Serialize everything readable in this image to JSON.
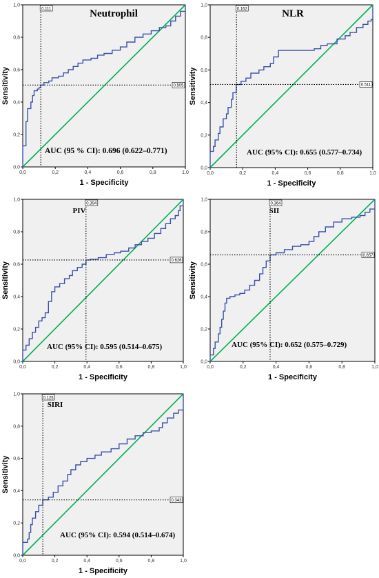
{
  "chart_data": [
    {
      "type": "line",
      "title": "Neutrophil",
      "xlabel": "1 - Specificity",
      "ylabel": "Sensitivity",
      "xlim": [
        0,
        1
      ],
      "ylim": [
        0,
        1
      ],
      "ticks": [
        "0,0",
        "0,2",
        "0,4",
        "0,6",
        "0,8",
        "1,0"
      ],
      "auc_text": "AUC (95 % CI): 0.696 (0.622–0.771)",
      "cutoff_x": 0.111,
      "cutoff_y": 0.505,
      "cutoff_x_label": "0.111",
      "cutoff_y_label": "0.505",
      "roc_color": "#3a4fa8",
      "ref_color": "#00b050",
      "roc": [
        [
          0,
          0
        ],
        [
          0,
          0.13
        ],
        [
          0.02,
          0.16
        ],
        [
          0.02,
          0.28
        ],
        [
          0.03,
          0.36
        ],
        [
          0.05,
          0.37
        ],
        [
          0.05,
          0.4
        ],
        [
          0.06,
          0.44
        ],
        [
          0.07,
          0.47
        ],
        [
          0.09,
          0.48
        ],
        [
          0.1,
          0.49
        ],
        [
          0.11,
          0.505
        ],
        [
          0.13,
          0.52
        ],
        [
          0.16,
          0.53
        ],
        [
          0.18,
          0.55
        ],
        [
          0.22,
          0.56
        ],
        [
          0.25,
          0.58
        ],
        [
          0.28,
          0.6
        ],
        [
          0.31,
          0.62
        ],
        [
          0.34,
          0.64
        ],
        [
          0.37,
          0.66
        ],
        [
          0.42,
          0.67
        ],
        [
          0.46,
          0.69
        ],
        [
          0.5,
          0.7
        ],
        [
          0.55,
          0.72
        ],
        [
          0.6,
          0.74
        ],
        [
          0.64,
          0.77
        ],
        [
          0.69,
          0.8
        ],
        [
          0.74,
          0.82
        ],
        [
          0.79,
          0.84
        ],
        [
          0.84,
          0.86
        ],
        [
          0.88,
          0.87
        ],
        [
          0.91,
          0.9
        ],
        [
          0.94,
          0.93
        ],
        [
          0.97,
          0.96
        ],
        [
          1,
          0.97
        ],
        [
          1,
          1
        ]
      ]
    },
    {
      "type": "line",
      "title": "NLR",
      "xlabel": "1 - Specificity",
      "ylabel": "Sensitivity",
      "xlim": [
        0,
        1
      ],
      "ylim": [
        0,
        1
      ],
      "ticks": [
        "0,0",
        "0,2",
        "0,4",
        "0,6",
        "0,8",
        "1,0"
      ],
      "auc_text": "AUC (95% CI): 0.655 (0.577–0.734)",
      "cutoff_x": 0.162,
      "cutoff_y": 0.511,
      "cutoff_x_label": "0.162",
      "cutoff_y_label": "0.511",
      "roc_color": "#3a4fa8",
      "ref_color": "#00b050",
      "roc": [
        [
          0,
          0
        ],
        [
          0,
          0.1
        ],
        [
          0.02,
          0.13
        ],
        [
          0.03,
          0.17
        ],
        [
          0.05,
          0.21
        ],
        [
          0.06,
          0.25
        ],
        [
          0.08,
          0.3
        ],
        [
          0.1,
          0.33
        ],
        [
          0.11,
          0.37
        ],
        [
          0.13,
          0.42
        ],
        [
          0.14,
          0.46
        ],
        [
          0.16,
          0.51
        ],
        [
          0.19,
          0.53
        ],
        [
          0.22,
          0.55
        ],
        [
          0.25,
          0.58
        ],
        [
          0.3,
          0.6
        ],
        [
          0.33,
          0.62
        ],
        [
          0.37,
          0.64
        ],
        [
          0.39,
          0.68
        ],
        [
          0.42,
          0.72
        ],
        [
          0.5,
          0.72
        ],
        [
          0.58,
          0.72
        ],
        [
          0.64,
          0.73
        ],
        [
          0.68,
          0.75
        ],
        [
          0.72,
          0.76
        ],
        [
          0.78,
          0.79
        ],
        [
          0.83,
          0.81
        ],
        [
          0.86,
          0.83
        ],
        [
          0.9,
          0.86
        ],
        [
          0.94,
          0.88
        ],
        [
          0.97,
          0.9
        ],
        [
          0.99,
          0.91
        ],
        [
          1,
          1
        ]
      ]
    },
    {
      "type": "line",
      "title": "PIV",
      "xlabel": "1 - Specificity",
      "ylabel": "Sensitivity",
      "xlim": [
        0,
        1
      ],
      "ylim": [
        0,
        1
      ],
      "ticks": [
        "0,0",
        "0,2",
        "0,4",
        "0,6",
        "0,8",
        "1,0"
      ],
      "auc_text": "AUC (95% CI): 0.595 (0.514–0.675)",
      "cutoff_x": 0.394,
      "cutoff_y": 0.626,
      "cutoff_x_label": "0.394",
      "cutoff_y_label": "0.626",
      "roc_color": "#3a4fa8",
      "ref_color": "#00b050",
      "roc": [
        [
          0,
          0
        ],
        [
          0,
          0.07
        ],
        [
          0.02,
          0.1
        ],
        [
          0.04,
          0.14
        ],
        [
          0.06,
          0.18
        ],
        [
          0.08,
          0.21
        ],
        [
          0.1,
          0.25
        ],
        [
          0.12,
          0.27
        ],
        [
          0.14,
          0.3
        ],
        [
          0.16,
          0.37
        ],
        [
          0.18,
          0.43
        ],
        [
          0.2,
          0.46
        ],
        [
          0.23,
          0.48
        ],
        [
          0.26,
          0.51
        ],
        [
          0.29,
          0.53
        ],
        [
          0.31,
          0.56
        ],
        [
          0.34,
          0.58
        ],
        [
          0.37,
          0.6
        ],
        [
          0.394,
          0.626
        ],
        [
          0.42,
          0.63
        ],
        [
          0.47,
          0.64
        ],
        [
          0.52,
          0.66
        ],
        [
          0.57,
          0.67
        ],
        [
          0.61,
          0.68
        ],
        [
          0.66,
          0.7
        ],
        [
          0.7,
          0.72
        ],
        [
          0.74,
          0.74
        ],
        [
          0.78,
          0.76
        ],
        [
          0.82,
          0.79
        ],
        [
          0.86,
          0.82
        ],
        [
          0.89,
          0.85
        ],
        [
          0.92,
          0.88
        ],
        [
          0.95,
          0.9
        ],
        [
          0.97,
          0.93
        ],
        [
          0.98,
          0.96
        ],
        [
          1,
          1
        ]
      ]
    },
    {
      "type": "line",
      "title": "SII",
      "xlabel": "1 - Specificity",
      "ylabel": "Sensitivity",
      "xlim": [
        0,
        1
      ],
      "ylim": [
        0,
        1
      ],
      "ticks": [
        "0,0",
        "0,2",
        "0,4",
        "0,6",
        "0,8",
        "1,0"
      ],
      "auc_text": "AUC (95% CI): 0.652 (0.575–0.729)",
      "cutoff_x": 0.364,
      "cutoff_y": 0.657,
      "cutoff_x_label": "0.364",
      "cutoff_y_label": "0.657",
      "roc_color": "#3a4fa8",
      "ref_color": "#00b050",
      "roc": [
        [
          0,
          0
        ],
        [
          0,
          0.04
        ],
        [
          0.02,
          0.08
        ],
        [
          0.03,
          0.12
        ],
        [
          0.05,
          0.17
        ],
        [
          0.06,
          0.21
        ],
        [
          0.07,
          0.26
        ],
        [
          0.08,
          0.31
        ],
        [
          0.09,
          0.36
        ],
        [
          0.1,
          0.39
        ],
        [
          0.12,
          0.4
        ],
        [
          0.15,
          0.41
        ],
        [
          0.18,
          0.42
        ],
        [
          0.21,
          0.44
        ],
        [
          0.24,
          0.47
        ],
        [
          0.27,
          0.5
        ],
        [
          0.3,
          0.54
        ],
        [
          0.32,
          0.58
        ],
        [
          0.34,
          0.62
        ],
        [
          0.364,
          0.657
        ],
        [
          0.4,
          0.67
        ],
        [
          0.45,
          0.69
        ],
        [
          0.5,
          0.71
        ],
        [
          0.55,
          0.72
        ],
        [
          0.6,
          0.74
        ],
        [
          0.63,
          0.77
        ],
        [
          0.66,
          0.8
        ],
        [
          0.7,
          0.83
        ],
        [
          0.75,
          0.86
        ],
        [
          0.8,
          0.88
        ],
        [
          0.86,
          0.89
        ],
        [
          0.91,
          0.9
        ],
        [
          0.94,
          0.92
        ],
        [
          0.97,
          0.94
        ],
        [
          1,
          0.97
        ],
        [
          1,
          1
        ]
      ]
    },
    {
      "type": "line",
      "title": "SIRI",
      "xlabel": "1 - Specificity",
      "ylabel": "Sensitivity",
      "xlim": [
        0,
        1
      ],
      "ylim": [
        0,
        1
      ],
      "ticks": [
        "0,0",
        "0,2",
        "0,4",
        "0,6",
        "0,8",
        "1,0"
      ],
      "auc_text": "AUC (95% CI): 0.594 (0.514–0.674)",
      "cutoff_x": 0.125,
      "cutoff_y": 0.343,
      "cutoff_x_label": "0.125",
      "cutoff_y_label": "0.343",
      "roc_color": "#3a4fa8",
      "ref_color": "#00b050",
      "roc": [
        [
          0,
          0
        ],
        [
          0,
          0.08
        ],
        [
          0.03,
          0.1
        ],
        [
          0.04,
          0.14
        ],
        [
          0.05,
          0.19
        ],
        [
          0.06,
          0.23
        ],
        [
          0.08,
          0.27
        ],
        [
          0.1,
          0.31
        ],
        [
          0.125,
          0.343
        ],
        [
          0.16,
          0.36
        ],
        [
          0.19,
          0.39
        ],
        [
          0.22,
          0.43
        ],
        [
          0.25,
          0.46
        ],
        [
          0.28,
          0.5
        ],
        [
          0.3,
          0.53
        ],
        [
          0.33,
          0.56
        ],
        [
          0.36,
          0.58
        ],
        [
          0.4,
          0.6
        ],
        [
          0.45,
          0.62
        ],
        [
          0.49,
          0.64
        ],
        [
          0.55,
          0.66
        ],
        [
          0.6,
          0.69
        ],
        [
          0.65,
          0.72
        ],
        [
          0.7,
          0.74
        ],
        [
          0.75,
          0.76
        ],
        [
          0.8,
          0.77
        ],
        [
          0.85,
          0.79
        ],
        [
          0.87,
          0.82
        ],
        [
          0.9,
          0.85
        ],
        [
          0.94,
          0.88
        ],
        [
          0.97,
          0.9
        ],
        [
          1,
          0.91
        ],
        [
          1,
          1
        ]
      ]
    }
  ]
}
